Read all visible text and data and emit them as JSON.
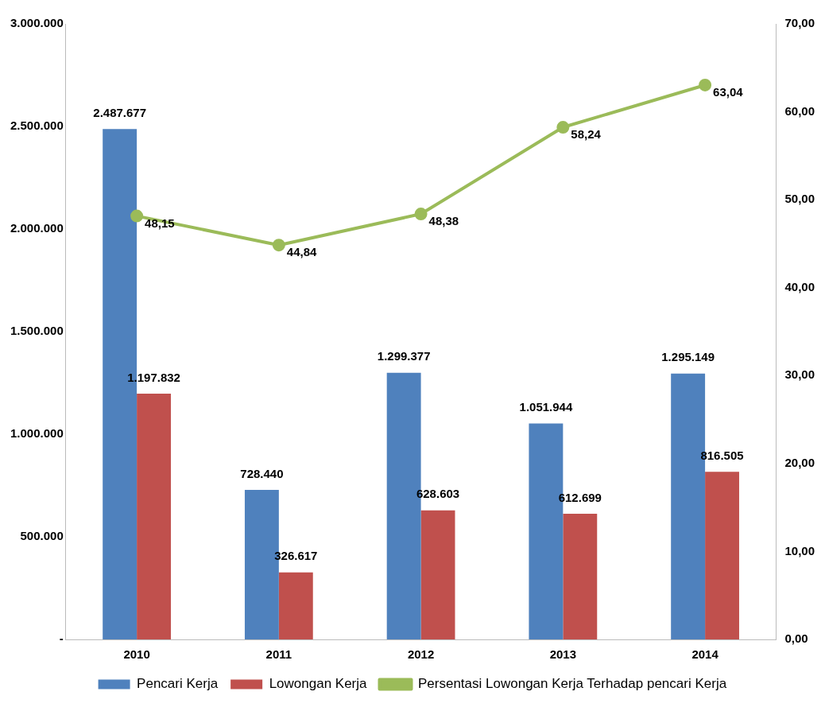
{
  "chart_data": {
    "type": "bar",
    "categories": [
      "2010",
      "2011",
      "2012",
      "2013",
      "2014"
    ],
    "series": [
      {
        "name": "Pencari Kerja",
        "color": "#4f81bd",
        "values": [
          2487677,
          728440,
          1299377,
          1051944,
          1295149
        ],
        "value_labels": [
          "2.487.677",
          "728.440",
          "1.299.377",
          "1.051.944",
          "1.295.149"
        ]
      },
      {
        "name": "Lowongan Kerja",
        "color": "#c0504d",
        "values": [
          1197832,
          326617,
          628603,
          612699,
          816505
        ],
        "value_labels": [
          "1.197.832",
          "326.617",
          "628.603",
          "612.699",
          "816.505"
        ]
      },
      {
        "name": "Persentasi Lowongan Kerja Terhadap pencari Kerja",
        "type": "line",
        "axis": "y2",
        "color": "#9bbb59",
        "values": [
          48.15,
          44.84,
          48.38,
          58.24,
          63.04
        ],
        "value_labels": [
          "48,15",
          "44,84",
          "48,38",
          "58,24",
          "63,04"
        ]
      }
    ],
    "ylim": [
      0,
      3000000
    ],
    "yticks": [
      {
        "value": 0,
        "label": "-"
      },
      {
        "value": 500000,
        "label": "500.000"
      },
      {
        "value": 1000000,
        "label": "1.000.000"
      },
      {
        "value": 1500000,
        "label": "1.500.000"
      },
      {
        "value": 2000000,
        "label": "2.000.000"
      },
      {
        "value": 2500000,
        "label": "2.500.000"
      },
      {
        "value": 3000000,
        "label": "3.000.000"
      }
    ],
    "y2lim": [
      0,
      70
    ],
    "y2ticks": [
      {
        "value": 0,
        "label": "0,00"
      },
      {
        "value": 10,
        "label": "10,00"
      },
      {
        "value": 20,
        "label": "20,00"
      },
      {
        "value": 30,
        "label": "30,00"
      },
      {
        "value": 40,
        "label": "40,00"
      },
      {
        "value": 50,
        "label": "50,00"
      },
      {
        "value": 60,
        "label": "60,00"
      },
      {
        "value": 70,
        "label": "70,00"
      }
    ],
    "grid": false,
    "legend": "bottom",
    "marker": "circle",
    "line_style": "solid"
  }
}
